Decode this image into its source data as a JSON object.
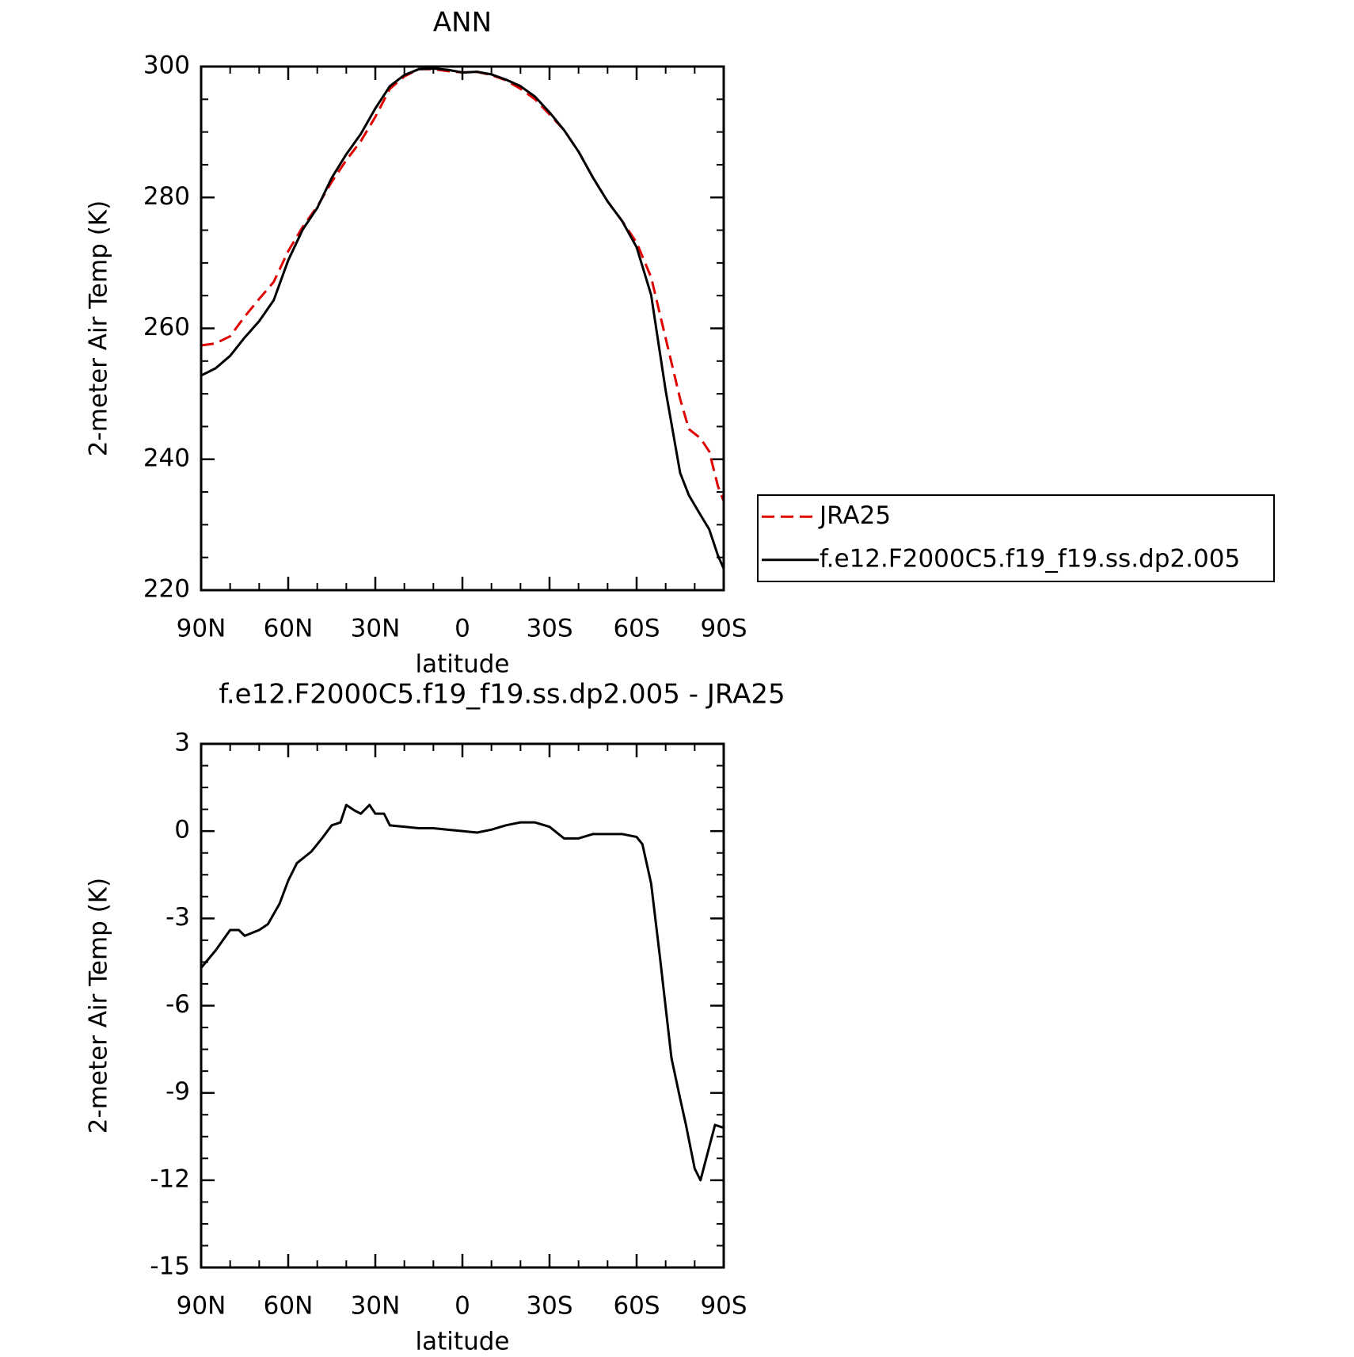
{
  "chart_data": [
    {
      "type": "line",
      "title": "ANN",
      "xlabel": "latitude",
      "ylabel": "2-meter Air Temp (K)",
      "x": [
        90,
        85,
        80,
        75,
        70,
        65,
        60,
        55,
        50,
        45,
        40,
        35,
        30,
        25,
        20,
        15,
        10,
        5,
        0,
        -5,
        -10,
        -15,
        -20,
        -25,
        -30,
        -35,
        -40,
        -45,
        -50,
        -55,
        -60,
        -65,
        -70,
        -75,
        -78,
        -82,
        -85,
        -88,
        -90
      ],
      "series": [
        {
          "name": "JRA25",
          "color": "#e00000",
          "dash": true,
          "values": [
            257.4,
            257.7,
            258.8,
            261.8,
            264.5,
            267.1,
            271.8,
            275.5,
            278.6,
            282.4,
            285.7,
            288.6,
            292.3,
            296.6,
            298.5,
            299.6,
            299.6,
            299.3,
            299.1,
            299.2,
            298.7,
            297.9,
            296.6,
            295,
            292.7,
            290.3,
            287,
            283,
            279.4,
            276.4,
            273.1,
            267.8,
            258.5,
            249.2,
            244.6,
            243.2,
            241.2,
            235.9,
            233.6
          ]
        },
        {
          "name": "f.e12.F2000C5.f19_f19.ss.dp2.005",
          "color": "#000000",
          "dash": false,
          "values": [
            252.8,
            253.9,
            255.8,
            258.6,
            261.1,
            264.3,
            270.4,
            275.1,
            278.4,
            283,
            286.6,
            289.7,
            293.6,
            297,
            298.7,
            299.6,
            299.7,
            299.5,
            299.1,
            299.2,
            298.8,
            298,
            297,
            295.4,
            293,
            290.3,
            287,
            283,
            279.4,
            276.4,
            272.4,
            265.1,
            250.5,
            237.9,
            234.5,
            231.5,
            229.3,
            225.3,
            223.3
          ]
        }
      ],
      "xlim": [
        90,
        -90
      ],
      "xticks": [
        {
          "value": 90,
          "label": "90N"
        },
        {
          "value": 60,
          "label": "60N"
        },
        {
          "value": 30,
          "label": "30N"
        },
        0,
        {
          "value": -30,
          "label": "30S"
        },
        {
          "value": -60,
          "label": "60S"
        },
        {
          "value": -90,
          "label": "90S"
        }
      ],
      "ylim": [
        220,
        300
      ],
      "yticks": [
        220,
        240,
        260,
        280,
        300
      ],
      "legend": "right"
    },
    {
      "type": "line",
      "title": "f.e12.F2000C5.f19_f19.ss.dp2.005 - JRA25",
      "xlabel": "latitude",
      "ylabel": "2-meter Air Temp (K)",
      "x": [
        90,
        85,
        80,
        77,
        75,
        70,
        67,
        63,
        60,
        57,
        52,
        48,
        45,
        42,
        40,
        37,
        35,
        32,
        30,
        27,
        25,
        20,
        15,
        10,
        5,
        0,
        -5,
        -10,
        -15,
        -20,
        -25,
        -30,
        -35,
        -40,
        -45,
        -50,
        -55,
        -60,
        -62,
        -65,
        -68,
        -72,
        -75,
        -77,
        -80,
        -82,
        -87,
        -90
      ],
      "color": "#000000",
      "values": [
        -4.7,
        -4.1,
        -3.4,
        -3.4,
        -3.6,
        -3.4,
        -3.2,
        -2.5,
        -1.7,
        -1.1,
        -0.7,
        -0.2,
        0.2,
        0.3,
        0.9,
        0.7,
        0.6,
        0.9,
        0.6,
        0.6,
        0.2,
        0.15,
        0.1,
        0.1,
        0.05,
        0,
        -0.05,
        0.05,
        0.2,
        0.3,
        0.3,
        0.15,
        -0.25,
        -0.25,
        -0.1,
        -0.1,
        -0.1,
        -0.2,
        -0.45,
        -1.8,
        -4.3,
        -7.8,
        -9.2,
        -10.1,
        -11.6,
        -12,
        -10.1,
        -10.2
      ],
      "xlim": [
        90,
        -90
      ],
      "xticks": [
        {
          "value": 90,
          "label": "90N"
        },
        {
          "value": 60,
          "label": "60N"
        },
        {
          "value": 30,
          "label": "30N"
        },
        0,
        {
          "value": -30,
          "label": "30S"
        },
        {
          "value": -60,
          "label": "60S"
        },
        {
          "value": -90,
          "label": "90S"
        }
      ],
      "ylim": [
        -15,
        3
      ],
      "yticks": [
        -15,
        -12,
        -9,
        -6,
        -3,
        0,
        3
      ]
    }
  ]
}
